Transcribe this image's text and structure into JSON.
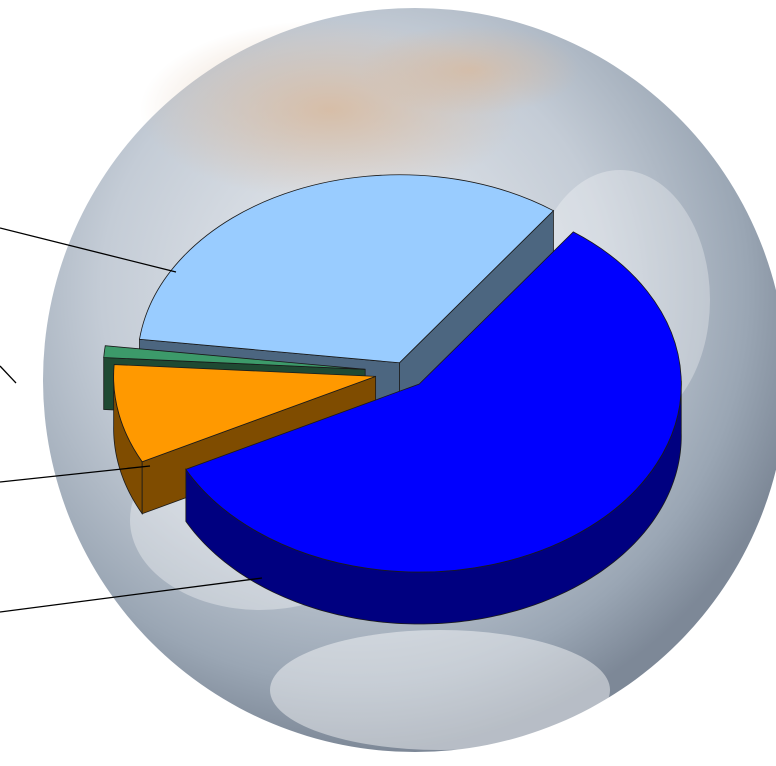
{
  "chart_data": {
    "type": "pie",
    "title": "",
    "style": "3d-exploded",
    "background": "earth-globe-photo",
    "slices": [
      {
        "value": 57.5,
        "color": "#0000ff",
        "side_color": "#000080"
      },
      {
        "value": 8.5,
        "color": "#ff9900",
        "side_color": "#7f4c00"
      },
      {
        "value": 1.0,
        "color": "#3c9a6a",
        "side_color": "#1f4a33"
      },
      {
        "value": 33.0,
        "color": "#99ccff",
        "side_color": "#4c6680"
      }
    ]
  }
}
